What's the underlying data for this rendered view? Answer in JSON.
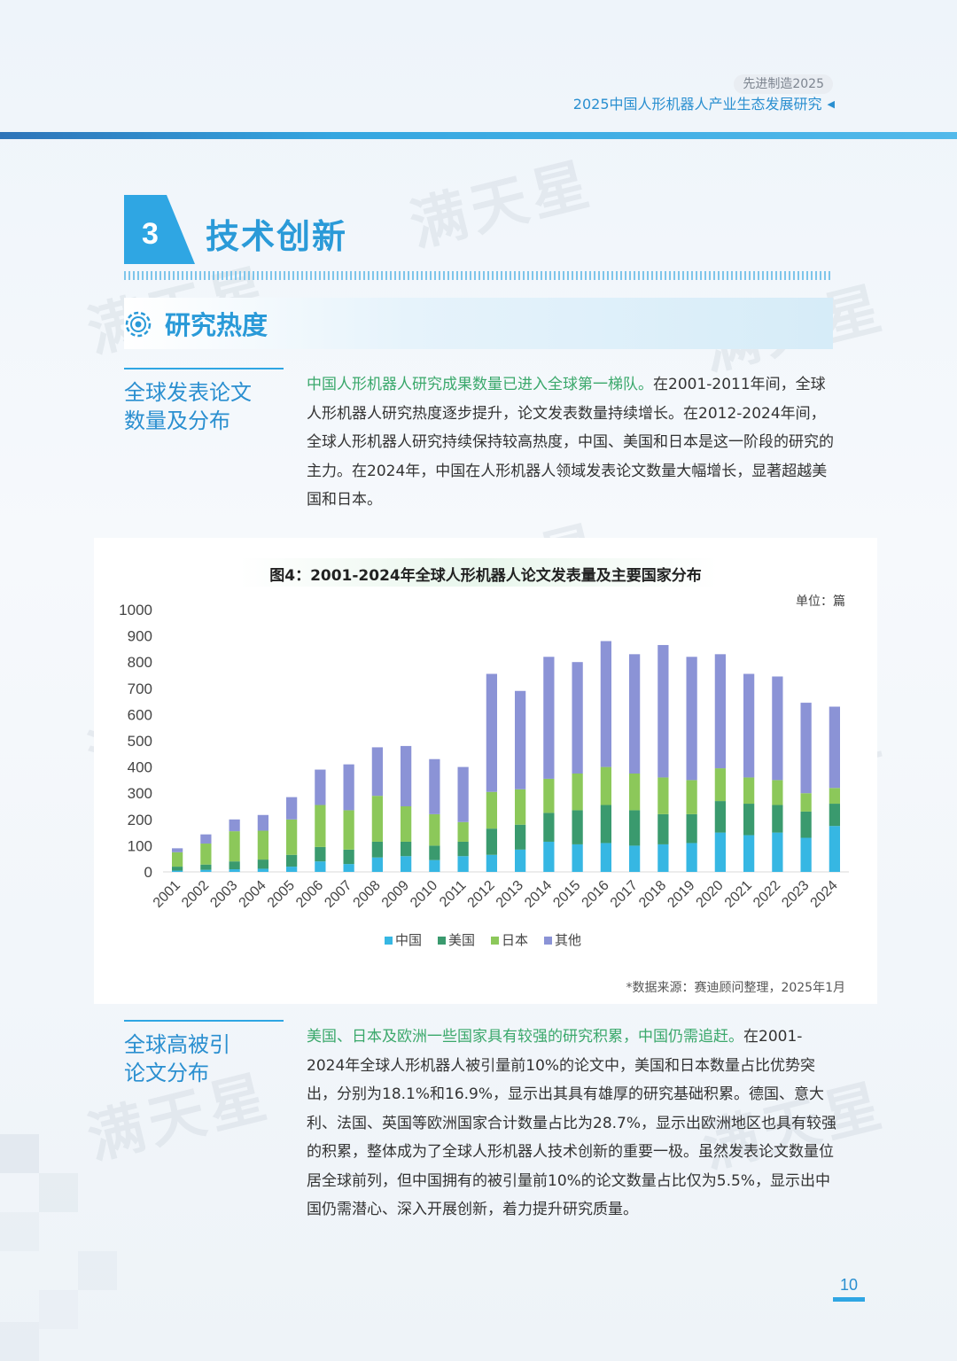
{
  "header": {
    "series_tag": "先进制造2025",
    "report_title": "2025中国人形机器人产业生态发展研究"
  },
  "section": {
    "number": "3",
    "title": "技术创新",
    "subsection_title": "研究热度"
  },
  "block1": {
    "heading_line1": "全球发表论文",
    "heading_line2": "数量及分布",
    "highlight": "中国人形机器人研究成果数量已进入全球第一梯队。",
    "body": "在2001-2011年间，全球人形机器人研究热度逐步提升，论文发表数量持续增长。在2012-2024年间，全球人形机器人研究持续保持较高热度，中国、美国和日本是这一阶段的研究的主力。在2024年，中国在人形机器人领域发表论文数量大幅增长，显著超越美国和日本。"
  },
  "chart": {
    "title": "图4：2001-2024年全球人形机器人论文发表量及主要国家分布",
    "unit": "单位：篇",
    "source": "*数据来源：赛迪顾问整理，2025年1月"
  },
  "chart_data": {
    "type": "bar",
    "stacked": true,
    "categories": [
      "2001",
      "2002",
      "2003",
      "2004",
      "2005",
      "2006",
      "2007",
      "2008",
      "2009",
      "2010",
      "2011",
      "2012",
      "2013",
      "2014",
      "2015",
      "2016",
      "2017",
      "2018",
      "2019",
      "2020",
      "2021",
      "2022",
      "2023",
      "2024"
    ],
    "series": [
      {
        "name": "中国",
        "color": "#36b7e3",
        "values": [
          5,
          8,
          10,
          12,
          20,
          40,
          30,
          55,
          60,
          45,
          60,
          65,
          85,
          115,
          105,
          110,
          100,
          105,
          110,
          150,
          140,
          150,
          130,
          175
        ]
      },
      {
        "name": "美国",
        "color": "#3a9a6e",
        "values": [
          15,
          20,
          30,
          35,
          45,
          55,
          55,
          60,
          55,
          55,
          55,
          100,
          95,
          110,
          130,
          145,
          135,
          115,
          110,
          120,
          120,
          105,
          100,
          85
        ]
      },
      {
        "name": "日本",
        "color": "#8cc85a",
        "values": [
          55,
          80,
          115,
          110,
          135,
          160,
          150,
          175,
          135,
          120,
          75,
          140,
          135,
          130,
          140,
          145,
          140,
          140,
          130,
          125,
          100,
          95,
          70,
          60
        ]
      },
      {
        "name": "其他",
        "color": "#8b93d6",
        "values": [
          15,
          35,
          45,
          60,
          85,
          135,
          175,
          185,
          230,
          210,
          210,
          450,
          375,
          465,
          425,
          480,
          455,
          505,
          470,
          435,
          395,
          395,
          345,
          310
        ]
      }
    ],
    "ylim": [
      0,
      1000
    ],
    "yticks": [
      0,
      100,
      200,
      300,
      400,
      500,
      600,
      700,
      800,
      900,
      1000
    ],
    "legend": "bottom",
    "grid": false
  },
  "block2": {
    "heading_line1": "全球高被引",
    "heading_line2": "论文分布",
    "highlight": "美国、日本及欧洲一些国家具有较强的研究积累，中国仍需追赶。",
    "body": "在2001-2024年全球人形机器人被引量前10%的论文中，美国和日本数量占比优势突出，分别为18.1%和16.9%，显示出其具有雄厚的研究基础积累。德国、意大利、法国、英国等欧洲国家合计数量占比为28.7%，显示出欧洲地区也具有较强的积累，整体成为了全球人形机器人技术创新的重要一极。虽然发表论文数量位居全球前列，但中国拥有的被引量前10%的论文数量占比仅为5.5%，显示出中国仍需潜心、深入开展创新，着力提升研究质量。"
  },
  "footer": {
    "page_number": "10"
  },
  "watermark_text": "满天星"
}
